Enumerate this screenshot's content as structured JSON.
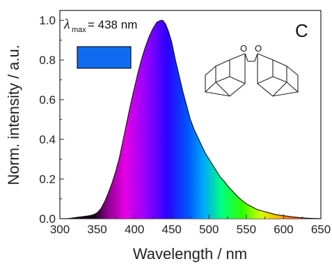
{
  "chart_data": {
    "type": "area",
    "title": "",
    "panel_label": "C",
    "xlabel": "Wavelength / nm",
    "ylabel": "Norm. intensity / a.u.",
    "xlim": [
      300,
      650
    ],
    "ylim": [
      0.0,
      1.05
    ],
    "x_ticks": [
      "300",
      "350",
      "400",
      "450",
      "500",
      "550",
      "600",
      "650"
    ],
    "y_ticks": [
      "0.0",
      "0.2",
      "0.4",
      "0.6",
      "0.8",
      "1.0"
    ],
    "grid": false,
    "fill": "spectral rainbow under curve",
    "annotation": {
      "symbol": "λ",
      "subscript": "max",
      "text": "= 438 nm",
      "swatch_color": "#0f6cf0"
    },
    "structure_atoms": [
      "O",
      "O"
    ],
    "series": [
      {
        "x": [
          300,
          310,
          320,
          330,
          340,
          345,
          350,
          355,
          360,
          365,
          370,
          375,
          380,
          385,
          390,
          395,
          400,
          405,
          410,
          415,
          420,
          425,
          430,
          435,
          438,
          442,
          446,
          450,
          455,
          460,
          465,
          470,
          475,
          480,
          485,
          490,
          495,
          500,
          505,
          510,
          515,
          520,
          525,
          530,
          535,
          540,
          545,
          550,
          555,
          560,
          565,
          570,
          575,
          580,
          590,
          600,
          610,
          620,
          630,
          640,
          650
        ],
        "values": [
          0.0,
          0.0,
          0.005,
          0.01,
          0.015,
          0.02,
          0.03,
          0.05,
          0.085,
          0.13,
          0.18,
          0.24,
          0.31,
          0.4,
          0.49,
          0.58,
          0.66,
          0.74,
          0.81,
          0.87,
          0.92,
          0.96,
          0.99,
          1.0,
          1.0,
          0.98,
          0.94,
          0.89,
          0.8,
          0.72,
          0.64,
          0.57,
          0.5,
          0.45,
          0.41,
          0.37,
          0.33,
          0.3,
          0.27,
          0.24,
          0.21,
          0.19,
          0.165,
          0.145,
          0.125,
          0.105,
          0.09,
          0.075,
          0.065,
          0.055,
          0.045,
          0.04,
          0.035,
          0.03,
          0.02,
          0.015,
          0.01,
          0.006,
          0.003,
          0.001,
          0.0
        ]
      }
    ]
  }
}
